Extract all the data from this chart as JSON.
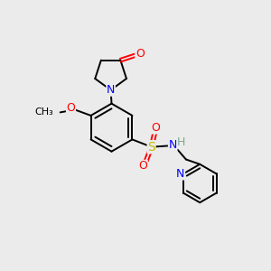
{
  "background_color": "#ebebeb",
  "bond_color": "#000000",
  "atom_colors": {
    "N": "#0000ff",
    "O": "#ff0000",
    "S": "#ccbb00",
    "H": "#7aaa88",
    "C": "#000000"
  },
  "figsize": [
    3.0,
    3.0
  ],
  "dpi": 100,
  "lw": 1.4
}
